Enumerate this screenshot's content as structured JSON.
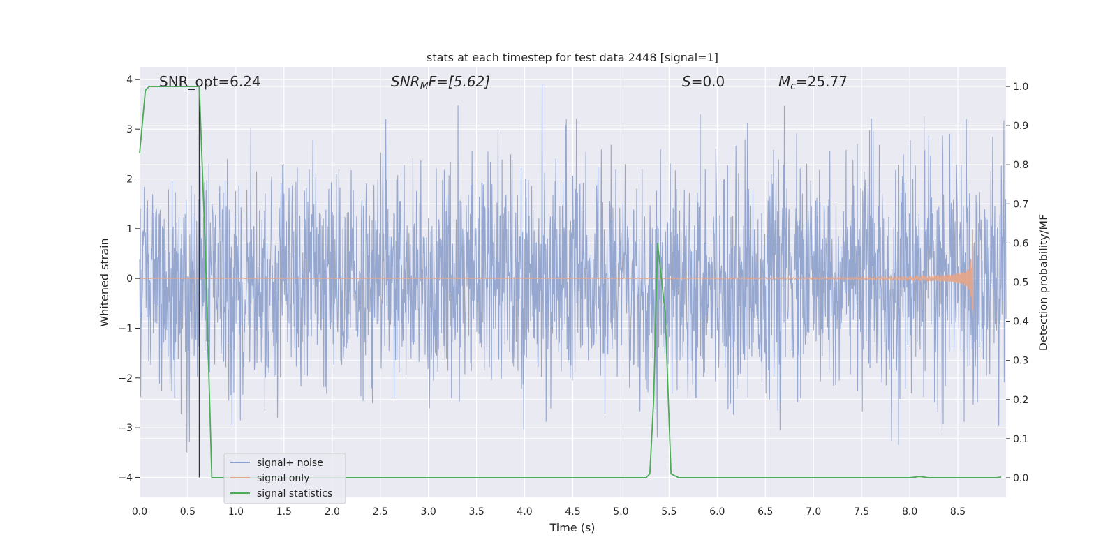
{
  "chart_data": {
    "type": "line",
    "title": "stats at each timestep for test data 2448 [signal=1]",
    "xlabel": "Time (s)",
    "ylabel_left": "Whitened strain",
    "ylabel_right": "Detection probability/MF",
    "xlim": [
      0.0,
      9.0
    ],
    "ylim_left": [
      -4.4,
      4.25
    ],
    "ylim_right": [
      -0.05,
      1.05
    ],
    "xticks": [
      "0.0",
      "0.5",
      "1.0",
      "1.5",
      "2.0",
      "2.5",
      "3.0",
      "3.5",
      "4.0",
      "4.5",
      "5.0",
      "5.5",
      "6.0",
      "6.5",
      "7.0",
      "7.5",
      "8.0",
      "8.5"
    ],
    "yticks_left": [
      "4",
      "3",
      "2",
      "1",
      "0",
      "−1",
      "−2",
      "−3",
      "−4"
    ],
    "yticks_right": [
      "1.0",
      "0.9",
      "0.8",
      "0.7",
      "0.6",
      "0.5",
      "0.4",
      "0.3",
      "0.2",
      "0.1",
      "0.0"
    ],
    "grid": true,
    "legend_position": "lower-left",
    "annotations": {
      "snr_opt": "SNR_opt=6.24",
      "snr_mf_sym": "SNR",
      "snr_mf_sub": "M",
      "snr_mf_rest": "F=[5.62]",
      "s_sym": "S",
      "s_rest": "=0.0",
      "mc_sym": "M",
      "mc_sub": "c",
      "mc_rest": "=25.77"
    },
    "marker_line_x": 0.62,
    "series": [
      {
        "name": "signal+ noise",
        "axis": "left",
        "color": "#8da0cb",
        "description_values": "whitened strain noise spanning roughly -3.5 to 3.9"
      },
      {
        "name": "signal only",
        "axis": "left",
        "color": "#e5a58a",
        "chirp_end_x": 8.66,
        "peak_amplitude": 1.25
      },
      {
        "name": "signal statistics",
        "axis": "right",
        "color": "#4daa57",
        "x": [
          0.0,
          0.06,
          0.1,
          0.2,
          0.3,
          0.4,
          0.5,
          0.6,
          0.62,
          0.68,
          0.75,
          0.8,
          1.0,
          2.0,
          3.0,
          4.0,
          5.0,
          5.26,
          5.3,
          5.34,
          5.38,
          5.46,
          5.52,
          5.6,
          6.0,
          7.0,
          8.0,
          8.1,
          8.2,
          8.5,
          8.9,
          8.95
        ],
        "y": [
          0.83,
          0.99,
          1.0,
          1.0,
          1.0,
          1.0,
          1.0,
          1.0,
          1.0,
          0.6,
          0.0,
          0.0,
          0.0,
          0.0,
          0.0,
          0.0,
          0.0,
          0.0,
          0.01,
          0.2,
          0.6,
          0.42,
          0.01,
          0.0,
          0.0,
          0.0,
          0.0,
          0.003,
          0.0,
          0.0,
          0.0,
          0.002
        ]
      }
    ]
  }
}
